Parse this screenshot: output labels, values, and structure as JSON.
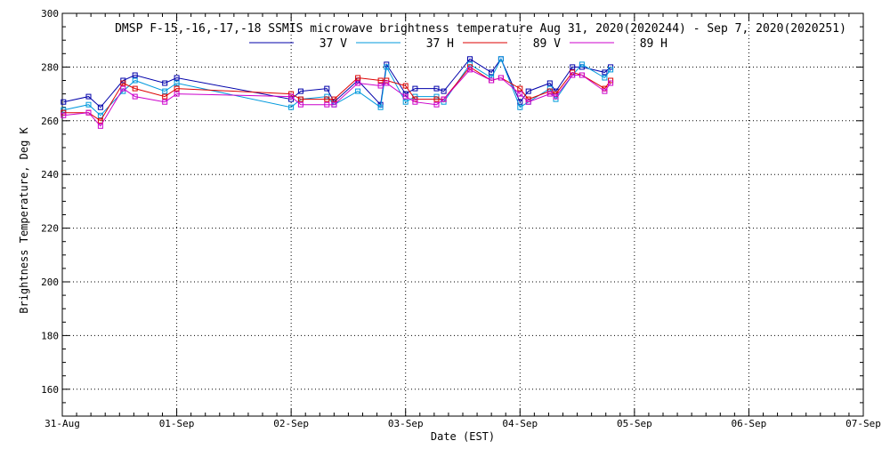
{
  "chart_data": {
    "type": "line",
    "title": "DMSP F-15,-16,-17,-18 SSMIS microwave brightness temperature Aug 31, 2020(2020244) - Sep  7, 2020(2020251)",
    "xlabel": "Date (EST)",
    "ylabel": "Brightness Temperature, Deg K",
    "ylim": [
      150,
      300
    ],
    "y_ticks": [
      160,
      180,
      200,
      220,
      240,
      260,
      280,
      300
    ],
    "xlim": [
      "2020-08-31",
      "2020-09-07"
    ],
    "x_ticks": [
      "31-Aug",
      "01-Sep",
      "02-Sep",
      "03-Sep",
      "04-Sep",
      "05-Sep",
      "06-Sep",
      "07-Sep"
    ],
    "grid": true,
    "legend_position": "top-center",
    "x": [
      "2020-08-31 00:15",
      "2020-08-31 05:30",
      "2020-08-31 08:00",
      "2020-08-31 12:45",
      "2020-08-31 15:15",
      "2020-08-31 21:30",
      "2020-09-01 00:00",
      "2020-09-02 00:00",
      "2020-09-02 02:00",
      "2020-09-02 07:30",
      "2020-09-02 09:00",
      "2020-09-02 14:00",
      "2020-09-02 18:45",
      "2020-09-02 20:00",
      "2020-09-03 00:00",
      "2020-09-03 02:00",
      "2020-09-03 06:30",
      "2020-09-03 08:00",
      "2020-09-03 13:30",
      "2020-09-03 18:00",
      "2020-09-03 20:00",
      "2020-09-04 00:00",
      "2020-09-04 01:45",
      "2020-09-04 06:15",
      "2020-09-04 07:30",
      "2020-09-04 11:00",
      "2020-09-04 13:00",
      "2020-09-04 17:45",
      "2020-09-04 19:00"
    ],
    "series": [
      {
        "name": "37 V",
        "color": "#0000aa",
        "values": [
          267,
          269,
          265,
          275,
          277,
          274,
          276,
          268,
          271,
          272,
          267,
          275,
          266,
          281,
          270,
          272,
          272,
          271,
          283,
          278,
          283,
          267,
          271,
          274,
          271,
          280,
          280,
          278,
          280
        ]
      },
      {
        "name": "37 H",
        "color": "#0099dd",
        "values": [
          264,
          266,
          262,
          271,
          275,
          271,
          274,
          265,
          268,
          269,
          266,
          271,
          265,
          280,
          267,
          269,
          269,
          267,
          281,
          276,
          283,
          265,
          267,
          272,
          268,
          277,
          281,
          276,
          279
        ]
      },
      {
        "name": "89 V",
        "color": "#dd0000",
        "values": [
          263,
          263,
          260,
          274,
          272,
          269,
          272,
          270,
          268,
          268,
          268,
          276,
          275,
          275,
          273,
          268,
          268,
          268,
          280,
          275,
          276,
          272,
          268,
          271,
          270,
          278,
          277,
          272,
          275
        ]
      },
      {
        "name": "89 H",
        "color": "#cc00cc",
        "values": [
          262,
          263,
          258,
          272,
          269,
          267,
          270,
          269,
          266,
          266,
          266,
          274,
          273,
          274,
          269,
          267,
          266,
          268,
          279,
          275,
          276,
          270,
          267,
          270,
          269,
          277,
          277,
          271,
          274
        ]
      }
    ]
  }
}
